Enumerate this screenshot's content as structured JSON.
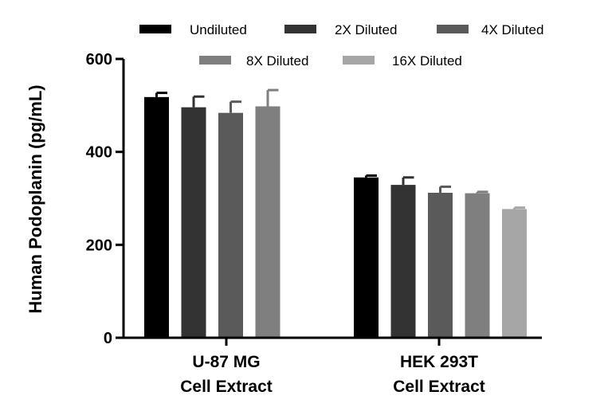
{
  "chart_data": {
    "type": "bar",
    "title": "",
    "xlabel": "",
    "ylabel": "Human Podoplanin (pg/mL)",
    "ylim": [
      0,
      600
    ],
    "yticks": [
      0,
      200,
      400,
      600
    ],
    "categories": [
      [
        "U-87 MG",
        "Cell Extract"
      ],
      [
        "HEK 293T",
        "Cell Extract"
      ]
    ],
    "legend_position": "top",
    "series": [
      {
        "name": "Undiluted",
        "color": "#000000",
        "values": [
          518,
          345
        ],
        "errors": [
          9,
          4
        ]
      },
      {
        "name": "2X Diluted",
        "color": "#333333",
        "values": [
          496,
          329
        ],
        "errors": [
          23,
          16
        ]
      },
      {
        "name": "4X Diluted",
        "color": "#5a5a5a",
        "values": [
          484,
          312
        ],
        "errors": [
          24,
          13
        ]
      },
      {
        "name": "8X Diluted",
        "color": "#7f7f7f",
        "values": [
          498,
          311
        ],
        "errors": [
          35,
          3
        ]
      },
      {
        "name": "16X Diluted",
        "color": "#a6a6a6",
        "values": [
          null,
          277
        ],
        "errors": [
          null,
          3
        ]
      }
    ]
  }
}
